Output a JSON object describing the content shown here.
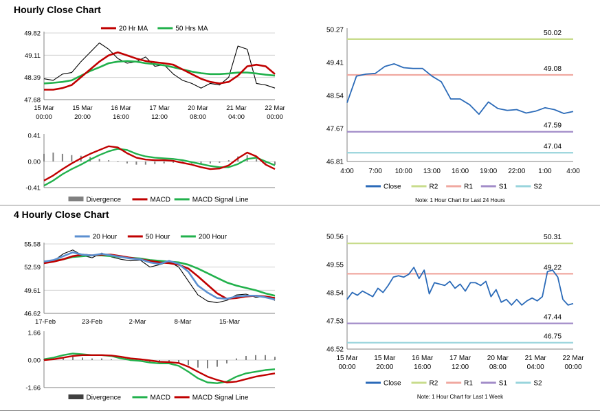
{
  "sections": [
    {
      "title": "Hourly Close Chart"
    },
    {
      "title": "4 Hourly Close Chart"
    }
  ],
  "colors": {
    "close": "#2a6ab8",
    "ma_red": "#c00000",
    "ma_green": "#22b14c",
    "ma_blue": "#5b8fd0",
    "r2": "#c8dc8c",
    "r1": "#f0a8a0",
    "s1": "#a28cc8",
    "s2": "#98d4dc",
    "divergence": "#808080"
  },
  "chart_data": [
    {
      "id": "hourly_price",
      "type": "line",
      "legend": [
        "20 Hr MA",
        "50 Hrs MA"
      ],
      "legend_placement": "top",
      "ylim": [
        47.68,
        49.82
      ],
      "yticks": [
        "49.82",
        "49.11",
        "48.39",
        "47.68"
      ],
      "xticks": [
        "15 Mar\n00:00",
        "15 Mar\n20:00",
        "16 Mar\n16:00",
        "17 Mar\n12:00",
        "20 Mar\n08:00",
        "21 Mar\n04:00",
        "22 Mar\n00:00"
      ],
      "grid": true,
      "series": [
        {
          "name": "20 Hr MA",
          "values": [
            48.0,
            48.0,
            48.05,
            48.15,
            48.4,
            48.65,
            48.9,
            49.1,
            49.2,
            49.1,
            49.0,
            48.92,
            48.88,
            48.85,
            48.8,
            48.65,
            48.5,
            48.35,
            48.25,
            48.2,
            48.25,
            48.45,
            48.75,
            48.8,
            48.75,
            48.5
          ]
        },
        {
          "name": "50 Hrs MA",
          "values": [
            48.2,
            48.22,
            48.25,
            48.3,
            48.45,
            48.6,
            48.72,
            48.85,
            48.9,
            48.92,
            48.9,
            48.85,
            48.82,
            48.78,
            48.72,
            48.65,
            48.58,
            48.53,
            48.5,
            48.5,
            48.52,
            48.55,
            48.55,
            48.52,
            48.48,
            48.45
          ]
        },
        {
          "name": "Close",
          "values": [
            48.35,
            48.3,
            48.5,
            48.55,
            48.9,
            49.2,
            49.5,
            49.3,
            49.0,
            48.85,
            48.9,
            49.05,
            48.75,
            48.8,
            48.5,
            48.3,
            48.2,
            48.05,
            48.2,
            48.15,
            48.4,
            49.4,
            49.3,
            48.2,
            48.15,
            48.05
          ]
        }
      ]
    },
    {
      "id": "hourly_macd",
      "type": "line",
      "legend": [
        "Divergence",
        "MACD",
        "MACD Signal Line"
      ],
      "ylim": [
        -0.41,
        0.41
      ],
      "yticks": [
        "0.41",
        "0.00",
        "-0.41"
      ],
      "series": [
        {
          "name": "Divergence",
          "values": [
            0.12,
            0.14,
            0.12,
            0.1,
            0.09,
            0.07,
            0.04,
            0.02,
            -0.01,
            -0.03,
            -0.05,
            -0.05,
            -0.04,
            -0.03,
            -0.02,
            -0.02,
            -0.03,
            -0.04,
            -0.03,
            -0.02,
            0.02,
            0.08,
            0.1,
            0.04,
            -0.03,
            -0.05
          ]
        },
        {
          "name": "MACD",
          "values": [
            -0.3,
            -0.22,
            -0.12,
            -0.03,
            0.05,
            0.12,
            0.18,
            0.24,
            0.22,
            0.13,
            0.06,
            0.03,
            0.02,
            0.02,
            0.01,
            -0.02,
            -0.05,
            -0.09,
            -0.12,
            -0.11,
            -0.06,
            0.05,
            0.14,
            0.08,
            -0.05,
            -0.12
          ]
        },
        {
          "name": "MACD Signal Line",
          "values": [
            -0.38,
            -0.3,
            -0.2,
            -0.12,
            -0.05,
            0.03,
            0.1,
            0.16,
            0.2,
            0.18,
            0.12,
            0.08,
            0.06,
            0.05,
            0.04,
            0.02,
            -0.01,
            -0.04,
            -0.07,
            -0.09,
            -0.09,
            -0.04,
            0.04,
            0.06,
            0.0,
            -0.06
          ]
        }
      ]
    },
    {
      "id": "hourly_levels",
      "type": "line",
      "legend": [
        "Close",
        "R2",
        "R1",
        "S1",
        "S2"
      ],
      "legend_placement": "bottom",
      "ylim": [
        46.81,
        50.27
      ],
      "yticks": [
        "50.27",
        "49.41",
        "48.54",
        "47.67",
        "46.81"
      ],
      "xticks": [
        "4:00",
        "7:00",
        "10:00",
        "13:00",
        "16:00",
        "19:00",
        "22:00",
        "1:00",
        "4:00"
      ],
      "levels": {
        "R2": 50.02,
        "R1": 49.08,
        "S1": 47.59,
        "S2": 47.04
      },
      "level_labels": {
        "R2": "50.02",
        "R1": "49.08",
        "S1": "47.59",
        "S2": "47.04"
      },
      "note": "Note: 1 Hour Chart for Last 24 Hours",
      "series": [
        {
          "name": "Close",
          "values": [
            48.35,
            49.05,
            49.1,
            49.12,
            49.3,
            49.37,
            49.27,
            49.25,
            49.25,
            49.05,
            48.9,
            48.45,
            48.45,
            48.3,
            48.05,
            48.37,
            48.2,
            48.15,
            48.17,
            48.08,
            48.13,
            48.22,
            48.17,
            48.07,
            48.12
          ]
        }
      ]
    },
    {
      "id": "four_hourly_price",
      "type": "line",
      "legend": [
        "20 Hour",
        "50 Hour",
        "200 Hour"
      ],
      "legend_placement": "top",
      "ylim": [
        46.62,
        55.58
      ],
      "yticks": [
        "55.58",
        "52.59",
        "49.61",
        "46.62"
      ],
      "xticks": [
        "17-Feb",
        "23-Feb",
        "2-Mar",
        "8-Mar",
        "15-Mar"
      ],
      "grid": true,
      "series": [
        {
          "name": "20 Hour",
          "values": [
            53.3,
            53.5,
            54.0,
            54.5,
            54.2,
            54.1,
            54.3,
            54.1,
            53.9,
            53.7,
            53.6,
            53.2,
            53.0,
            53.4,
            53.0,
            52.0,
            50.2,
            49.3,
            48.6,
            48.5,
            48.8,
            48.9,
            48.9,
            48.7,
            48.4
          ]
        },
        {
          "name": "50 Hour",
          "values": [
            53.1,
            53.3,
            53.6,
            54.0,
            54.2,
            54.1,
            54.2,
            54.2,
            54.0,
            53.8,
            53.6,
            53.4,
            53.2,
            53.1,
            52.9,
            52.4,
            51.4,
            50.3,
            49.2,
            48.5,
            48.6,
            48.8,
            48.9,
            48.8,
            48.6
          ]
        },
        {
          "name": "200 Hour",
          "values": [
            53.3,
            53.4,
            53.6,
            53.9,
            54.0,
            54.1,
            54.1,
            54.0,
            53.9,
            53.8,
            53.7,
            53.5,
            53.4,
            53.3,
            53.2,
            52.9,
            52.4,
            51.8,
            51.2,
            50.6,
            50.2,
            49.9,
            49.6,
            49.2,
            48.9
          ]
        },
        {
          "name": "Close",
          "values": [
            53.2,
            53.4,
            54.3,
            54.8,
            54.1,
            53.8,
            54.4,
            53.9,
            53.6,
            53.4,
            53.5,
            52.6,
            52.9,
            53.3,
            52.6,
            50.8,
            49.0,
            48.2,
            48.0,
            48.3,
            49.0,
            49.1,
            48.7,
            48.8,
            48.3
          ]
        }
      ]
    },
    {
      "id": "four_hourly_macd",
      "type": "line",
      "legend": [
        "Divergence",
        "MACD",
        "MACD Signal Line"
      ],
      "ylim": [
        -1.66,
        1.66
      ],
      "yticks": [
        "1.66",
        "0.00",
        "-1.66"
      ],
      "series": [
        {
          "name": "Divergence",
          "values": [
            0.05,
            0.1,
            0.15,
            0.2,
            0.15,
            0.1,
            0.1,
            0.05,
            0.0,
            -0.05,
            -0.1,
            -0.15,
            -0.1,
            -0.1,
            -0.2,
            -0.3,
            -0.45,
            -0.5,
            -0.4,
            -0.2,
            0.1,
            0.25,
            0.3,
            0.3,
            0.2
          ]
        },
        {
          "name": "MACD",
          "values": [
            0.05,
            0.15,
            0.3,
            0.4,
            0.35,
            0.3,
            0.3,
            0.25,
            0.1,
            0.0,
            -0.05,
            -0.15,
            -0.2,
            -0.2,
            -0.35,
            -0.7,
            -1.1,
            -1.35,
            -1.4,
            -1.3,
            -1.0,
            -0.8,
            -0.7,
            -0.6,
            -0.55
          ]
        },
        {
          "name": "MACD Signal Line",
          "values": [
            0.0,
            0.05,
            0.15,
            0.25,
            0.3,
            0.3,
            0.3,
            0.28,
            0.2,
            0.1,
            0.05,
            -0.02,
            -0.1,
            -0.12,
            -0.18,
            -0.4,
            -0.7,
            -1.0,
            -1.2,
            -1.35,
            -1.3,
            -1.15,
            -1.0,
            -0.9,
            -0.8
          ]
        }
      ]
    },
    {
      "id": "weekly_levels",
      "type": "line",
      "legend": [
        "Close",
        "R2",
        "R1",
        "S1",
        "S2"
      ],
      "legend_placement": "bottom",
      "ylim": [
        46.52,
        50.56
      ],
      "yticks": [
        "50.56",
        "49.55",
        "48.54",
        "47.53",
        "46.52"
      ],
      "xticks": [
        "15 Mar\n00:00",
        "15 Mar\n20:00",
        "16 Mar\n16:00",
        "17 Mar\n12:00",
        "20 Mar\n08:00",
        "21 Mar\n04:00",
        "22 Mar\n00:00"
      ],
      "levels": {
        "R2": 50.31,
        "R1": 49.22,
        "S1": 47.44,
        "S2": 46.75
      },
      "level_labels": {
        "R2": "50.31",
        "R1": "49.22",
        "S1": "47.44",
        "S2": "46.75"
      },
      "note": "Note: 1 Hour Chart for Last 1 Week",
      "series": [
        {
          "name": "Close",
          "values": [
            48.3,
            48.55,
            48.45,
            48.6,
            48.5,
            48.4,
            48.7,
            48.55,
            48.8,
            49.1,
            49.15,
            49.1,
            49.2,
            49.45,
            49.05,
            49.35,
            48.5,
            48.9,
            48.85,
            48.8,
            48.95,
            48.7,
            48.85,
            48.6,
            48.9,
            48.9,
            48.8,
            48.95,
            48.4,
            48.65,
            48.2,
            48.3,
            48.1,
            48.3,
            48.1,
            48.25,
            48.35,
            48.25,
            48.4,
            49.3,
            49.35,
            49.1,
            48.3,
            48.1,
            48.15
          ]
        }
      ]
    }
  ]
}
